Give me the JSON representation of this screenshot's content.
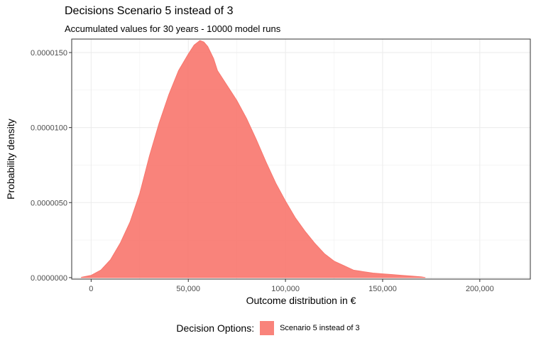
{
  "chart_data": {
    "type": "area",
    "title": "Decisions Scenario 5 instead of 3",
    "subtitle": "Accumulated values for 30 years - 10000 model runs",
    "xlabel": "Outcome distribution in €",
    "ylabel": "Probability density",
    "xlim": [
      -10000,
      226000
    ],
    "ylim": [
      -1e-07,
      1.59e-05
    ],
    "x_ticks": [
      {
        "value": 0,
        "label": "0"
      },
      {
        "value": 50000,
        "label": "50,000"
      },
      {
        "value": 100000,
        "label": "100,000"
      },
      {
        "value": 150000,
        "label": "150,000"
      },
      {
        "value": 200000,
        "label": "200,000"
      }
    ],
    "y_ticks": [
      {
        "value": 0,
        "label": "0.0000000"
      },
      {
        "value": 5e-06,
        "label": "0.0000050"
      },
      {
        "value": 1e-05,
        "label": "0.0000100"
      },
      {
        "value": 1.5e-05,
        "label": "0.0000150"
      }
    ],
    "grid": true,
    "legend_position": "bottom",
    "series": [
      {
        "name": "Scenario 5 instead of 3",
        "color": "#F8766D",
        "x": [
          -5000,
          0,
          5000,
          10000,
          15000,
          20000,
          25000,
          30000,
          35000,
          40000,
          45000,
          50000,
          53000,
          56000,
          58000,
          60000,
          63000,
          65000,
          70000,
          75000,
          80000,
          85000,
          90000,
          95000,
          100000,
          105000,
          110000,
          115000,
          120000,
          125000,
          130000,
          135000,
          140000,
          145000,
          150000,
          155000,
          160000,
          165000,
          170000,
          172000
        ],
        "y": [
          2e-08,
          1.5e-07,
          5e-07,
          1.2e-06,
          2.3e-06,
          3.7e-06,
          5.6e-06,
          8.1e-06,
          1.03e-05,
          1.22e-05,
          1.38e-05,
          1.49e-05,
          1.55e-05,
          1.58e-05,
          1.57e-05,
          1.54e-05,
          1.46e-05,
          1.38e-05,
          1.28e-05,
          1.18e-05,
          1.06e-05,
          9.2e-06,
          7.7e-06,
          6.3e-06,
          5.1e-06,
          4e-06,
          3.1e-06,
          2.3e-06,
          1.6e-06,
          1.1e-06,
          8e-07,
          5e-07,
          4e-07,
          3e-07,
          2.5e-07,
          2e-07,
          1.5e-07,
          1e-07,
          5e-08,
          0.0
        ]
      }
    ]
  }
}
